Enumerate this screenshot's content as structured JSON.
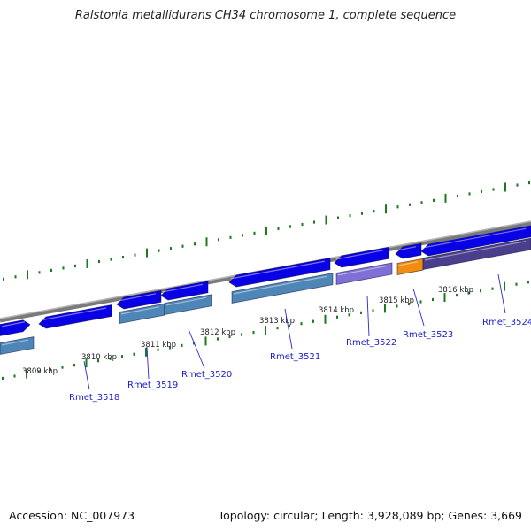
{
  "title": "Ralstonia metallidurans CH34 chromosome 1, complete sequence",
  "footer": {
    "accession": "Accession: NC_007973",
    "topology": "Topology: circular; Length: 3,928,089 bp; Genes: 3,669"
  },
  "colors": {
    "gene_blue": "#0a00e6",
    "cds_steel": "#4f86b8",
    "cds_lavender": "#7f70d8",
    "cds_orange": "#f08c10",
    "cds_purple": "#4a3f8c",
    "tick_green": "#1b7a1b",
    "backbone_gray": "#8c8c8c",
    "label_blue": "#1a1acc"
  },
  "kbp_labels": [
    "3809 kbp",
    "3810 kbp",
    "3811 kbp",
    "3812 kbp",
    "3813 kbp",
    "3814 kbp",
    "3815 kbp",
    "3816 kbp"
  ],
  "gene_labels": [
    "Rmet_3518",
    "Rmet_3519",
    "Rmet_3520",
    "Rmet_3521",
    "Rmet_3522",
    "Rmet_3523",
    "Rmet_3524"
  ]
}
